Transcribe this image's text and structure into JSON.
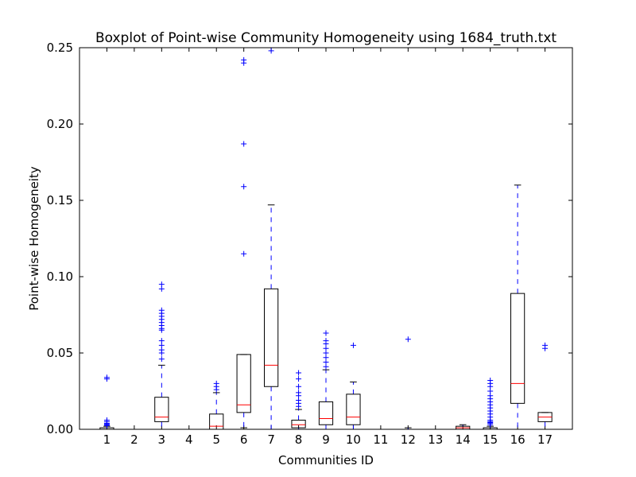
{
  "chart_data": {
    "type": "box",
    "title": "Boxplot of Point-wise Community Homogeneity using 1684_truth.txt",
    "xlabel": "Communities ID",
    "ylabel": "Point-wise Homogeneity",
    "ylim": [
      0,
      0.25
    ],
    "yticks": [
      "0.00",
      "0.05",
      "0.10",
      "0.15",
      "0.20",
      "0.25"
    ],
    "grid": false,
    "colors": {
      "box": "#000000",
      "whisker": "#0000ff",
      "median": "#ff0000",
      "flier": "#0000ff"
    },
    "categories": [
      "1",
      "2",
      "3",
      "4",
      "5",
      "6",
      "7",
      "8",
      "9",
      "10",
      "11",
      "12",
      "13",
      "14",
      "15",
      "16",
      "17"
    ],
    "boxes": [
      {
        "id": "1",
        "whislo": 0.0,
        "q1": 0.0,
        "med": 0.0,
        "q3": 0.001,
        "whishi": 0.002,
        "fliers": [
          0.0025,
          0.003,
          0.0035,
          0.004,
          0.005,
          0.006,
          0.033,
          0.034
        ]
      },
      {
        "id": "2",
        "whislo": 0.0,
        "q1": 0.0,
        "med": 0.0,
        "q3": 0.0,
        "whishi": 0.0,
        "fliers": []
      },
      {
        "id": "3",
        "whislo": 0.0,
        "q1": 0.005,
        "med": 0.008,
        "q3": 0.021,
        "whishi": 0.042,
        "fliers": [
          0.046,
          0.05,
          0.052,
          0.055,
          0.058,
          0.065,
          0.066,
          0.068,
          0.07,
          0.072,
          0.074,
          0.076,
          0.078,
          0.092,
          0.095
        ]
      },
      {
        "id": "4",
        "whislo": 0.0,
        "q1": 0.0,
        "med": 0.0,
        "q3": 0.0,
        "whishi": 0.0,
        "fliers": []
      },
      {
        "id": "5",
        "whislo": 0.0,
        "q1": 0.0,
        "med": 0.002,
        "q3": 0.01,
        "whishi": 0.024,
        "fliers": [
          0.026,
          0.028,
          0.03
        ]
      },
      {
        "id": "6",
        "whislo": 0.001,
        "q1": 0.011,
        "med": 0.016,
        "q3": 0.049,
        "whishi": 0.049,
        "fliers": [
          0.115,
          0.159,
          0.187,
          0.24,
          0.242
        ]
      },
      {
        "id": "7",
        "whislo": 0.0,
        "q1": 0.028,
        "med": 0.042,
        "q3": 0.092,
        "whishi": 0.147,
        "fliers": [
          0.248
        ]
      },
      {
        "id": "8",
        "whislo": 0.0,
        "q1": 0.001,
        "med": 0.003,
        "q3": 0.006,
        "whishi": 0.013,
        "fliers": [
          0.015,
          0.017,
          0.019,
          0.022,
          0.024,
          0.028,
          0.033,
          0.037
        ]
      },
      {
        "id": "9",
        "whislo": 0.0,
        "q1": 0.003,
        "med": 0.007,
        "q3": 0.018,
        "whishi": 0.039,
        "fliers": [
          0.041,
          0.044,
          0.047,
          0.05,
          0.053,
          0.056,
          0.058,
          0.063
        ]
      },
      {
        "id": "10",
        "whislo": 0.0,
        "q1": 0.003,
        "med": 0.008,
        "q3": 0.023,
        "whishi": 0.031,
        "fliers": [
          0.055
        ]
      },
      {
        "id": "11",
        "whislo": 0.0,
        "q1": 0.0,
        "med": 0.0,
        "q3": 0.0,
        "whishi": 0.0,
        "fliers": []
      },
      {
        "id": "12",
        "whislo": 0.0,
        "q1": 0.0,
        "med": 0.0,
        "q3": 0.0,
        "whishi": 0.001,
        "fliers": [
          0.059
        ]
      },
      {
        "id": "13",
        "whislo": 0.0,
        "q1": 0.0,
        "med": 0.0,
        "q3": 0.0,
        "whishi": 0.0,
        "fliers": []
      },
      {
        "id": "14",
        "whislo": 0.0,
        "q1": 0.0,
        "med": 0.001,
        "q3": 0.002,
        "whishi": 0.003,
        "fliers": []
      },
      {
        "id": "15",
        "whislo": 0.0,
        "q1": 0.0,
        "med": 0.0,
        "q3": 0.001,
        "whishi": 0.002,
        "fliers": [
          0.003,
          0.004,
          0.0045,
          0.005,
          0.006,
          0.008,
          0.01,
          0.012,
          0.014,
          0.016,
          0.018,
          0.02,
          0.022,
          0.025,
          0.028,
          0.03,
          0.032
        ]
      },
      {
        "id": "16",
        "whislo": 0.0,
        "q1": 0.017,
        "med": 0.03,
        "q3": 0.089,
        "whishi": 0.16,
        "fliers": []
      },
      {
        "id": "17",
        "whislo": 0.0,
        "q1": 0.005,
        "med": 0.008,
        "q3": 0.011,
        "whishi": 0.011,
        "fliers": [
          0.053,
          0.055
        ]
      }
    ]
  }
}
